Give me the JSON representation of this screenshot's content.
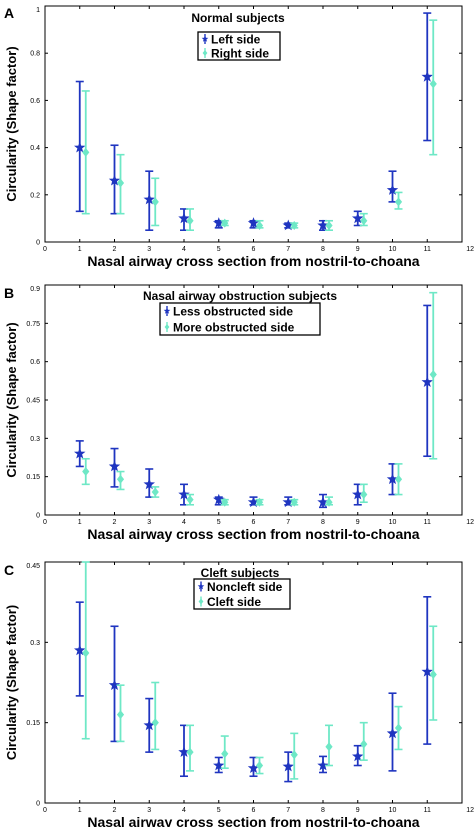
{
  "colors": {
    "left": "#1f35c0",
    "right": "#6ee8c6",
    "axis": "#000000"
  },
  "chart_data": [
    {
      "type": "scatter",
      "panel_label": "A",
      "title": "",
      "xlabel": "Nasal airway cross section from nostril-to-choana",
      "ylabel": "Circularity (Shape factor)",
      "xlim": [
        0,
        12
      ],
      "ylim": [
        0,
        1
      ],
      "xticks": [
        "0",
        "1",
        "2",
        "3",
        "4",
        "5",
        "6",
        "7",
        "8",
        "9",
        "10",
        "11",
        "12"
      ],
      "yticks": [
        "0",
        "0.2",
        "0.4",
        "0.6",
        "0.8",
        "1"
      ],
      "ytick_values": [
        0,
        0.2,
        0.4,
        0.6,
        0.8,
        1
      ],
      "legend": {
        "title": "Normal subjects",
        "entries": [
          "Left side",
          "Right side"
        ]
      },
      "series": [
        {
          "name": "Left side",
          "marker": "star",
          "x": [
            1,
            2,
            3,
            4,
            5,
            6,
            7,
            8,
            9,
            10,
            11
          ],
          "mean": [
            0.4,
            0.26,
            0.18,
            0.1,
            0.08,
            0.08,
            0.07,
            0.07,
            0.1,
            0.22,
            0.7
          ],
          "lower": [
            0.13,
            0.12,
            0.05,
            0.05,
            0.06,
            0.06,
            0.06,
            0.05,
            0.07,
            0.17,
            0.43
          ],
          "upper": [
            0.68,
            0.41,
            0.3,
            0.14,
            0.09,
            0.09,
            0.08,
            0.09,
            0.13,
            0.3,
            0.97
          ]
        },
        {
          "name": "Right side",
          "marker": "diamond",
          "x": [
            1,
            2,
            3,
            4,
            5,
            6,
            7,
            8,
            9,
            10,
            11
          ],
          "mean": [
            0.38,
            0.25,
            0.17,
            0.09,
            0.08,
            0.07,
            0.07,
            0.07,
            0.09,
            0.17,
            0.67
          ],
          "lower": [
            0.12,
            0.12,
            0.07,
            0.05,
            0.07,
            0.06,
            0.06,
            0.05,
            0.07,
            0.14,
            0.37
          ],
          "upper": [
            0.64,
            0.37,
            0.27,
            0.14,
            0.09,
            0.09,
            0.08,
            0.09,
            0.12,
            0.21,
            0.94
          ]
        }
      ]
    },
    {
      "type": "scatter",
      "panel_label": "B",
      "title": "",
      "xlabel": "Nasal airway cross section from nostril-to-choana",
      "ylabel": "Circularity (Shape factor)",
      "xlim": [
        0,
        12
      ],
      "ylim": [
        0,
        0.9
      ],
      "xticks": [
        "0",
        "1",
        "2",
        "3",
        "4",
        "5",
        "6",
        "7",
        "8",
        "9",
        "10",
        "11",
        "12"
      ],
      "yticks": [
        "0",
        "0.15",
        "0.3",
        "0.45",
        "0.6",
        "0.75",
        "0.9"
      ],
      "ytick_values": [
        0,
        0.15,
        0.3,
        0.45,
        0.6,
        0.75,
        0.9
      ],
      "legend": {
        "title": "Nasal airway obstruction subjects",
        "entries": [
          "Less obstructed side",
          "More obstructed side"
        ]
      },
      "series": [
        {
          "name": "Less obstructed side",
          "marker": "star",
          "x": [
            1,
            2,
            3,
            4,
            5,
            6,
            7,
            8,
            9,
            10,
            11
          ],
          "mean": [
            0.24,
            0.19,
            0.12,
            0.08,
            0.06,
            0.05,
            0.05,
            0.05,
            0.08,
            0.14,
            0.52
          ],
          "lower": [
            0.19,
            0.11,
            0.07,
            0.04,
            0.04,
            0.04,
            0.04,
            0.03,
            0.04,
            0.08,
            0.23
          ],
          "upper": [
            0.29,
            0.26,
            0.18,
            0.12,
            0.07,
            0.07,
            0.07,
            0.08,
            0.12,
            0.2,
            0.82
          ]
        },
        {
          "name": "More obstructed side",
          "marker": "diamond",
          "x": [
            1,
            2,
            3,
            4,
            5,
            6,
            7,
            8,
            9,
            10,
            11
          ],
          "mean": [
            0.17,
            0.14,
            0.09,
            0.06,
            0.05,
            0.05,
            0.05,
            0.05,
            0.08,
            0.14,
            0.55
          ],
          "lower": [
            0.12,
            0.1,
            0.07,
            0.04,
            0.04,
            0.04,
            0.04,
            0.04,
            0.05,
            0.08,
            0.22
          ],
          "upper": [
            0.22,
            0.17,
            0.11,
            0.08,
            0.06,
            0.06,
            0.06,
            0.07,
            0.12,
            0.2,
            0.87
          ]
        }
      ]
    },
    {
      "type": "scatter",
      "panel_label": "C",
      "title": "",
      "xlabel": "Nasal airway cross section from nostril-to-choana",
      "ylabel": "Circularity (Shape factor)",
      "xlim": [
        0,
        12
      ],
      "ylim": [
        0,
        0.45
      ],
      "xticks": [
        "0",
        "1",
        "2",
        "3",
        "4",
        "5",
        "6",
        "7",
        "8",
        "9",
        "10",
        "11",
        "12"
      ],
      "yticks": [
        "0",
        "0.15",
        "0.3",
        "0.45"
      ],
      "ytick_values": [
        0,
        0.15,
        0.3,
        0.45
      ],
      "legend": {
        "title": "Cleft subjects",
        "entries": [
          "Noncleft side",
          "Cleft side"
        ]
      },
      "series": [
        {
          "name": "Noncleft side",
          "marker": "star",
          "x": [
            1,
            2,
            3,
            4,
            5,
            6,
            7,
            8,
            9,
            10,
            11
          ],
          "mean": [
            0.285,
            0.22,
            0.145,
            0.095,
            0.07,
            0.065,
            0.068,
            0.07,
            0.087,
            0.13,
            0.245
          ],
          "lower": [
            0.2,
            0.115,
            0.095,
            0.05,
            0.057,
            0.05,
            0.04,
            0.057,
            0.07,
            0.06,
            0.11
          ],
          "upper": [
            0.375,
            0.33,
            0.195,
            0.145,
            0.085,
            0.085,
            0.095,
            0.087,
            0.107,
            0.205,
            0.385
          ]
        },
        {
          "name": "Cleft side",
          "marker": "diamond",
          "x": [
            1,
            2,
            3,
            4,
            5,
            6,
            7,
            8,
            9,
            10,
            11
          ],
          "mean": [
            0.28,
            0.165,
            0.15,
            0.095,
            0.092,
            0.07,
            0.09,
            0.105,
            0.11,
            0.14,
            0.24
          ],
          "lower": [
            0.12,
            0.115,
            0.1,
            0.06,
            0.065,
            0.055,
            0.045,
            0.07,
            0.08,
            0.1,
            0.155
          ],
          "upper": [
            0.45,
            0.22,
            0.225,
            0.145,
            0.125,
            0.085,
            0.13,
            0.145,
            0.15,
            0.18,
            0.33
          ]
        }
      ]
    }
  ]
}
